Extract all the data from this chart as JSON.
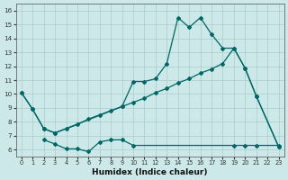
{
  "xlabel": "Humidex (Indice chaleur)",
  "bg_color": "#cce8e8",
  "grid_color": "#aacccc",
  "line_color": "#006666",
  "xlim": [
    -0.5,
    23.5
  ],
  "ylim": [
    5.5,
    16.5
  ],
  "xticks": [
    0,
    1,
    2,
    3,
    4,
    5,
    6,
    7,
    8,
    9,
    10,
    11,
    12,
    13,
    14,
    15,
    16,
    17,
    18,
    19,
    20,
    21,
    22,
    23
  ],
  "yticks": [
    6,
    7,
    8,
    9,
    10,
    11,
    12,
    13,
    14,
    15,
    16
  ],
  "line1_x": [
    0,
    1,
    2,
    3,
    4,
    5,
    6,
    7,
    8,
    9,
    10,
    11,
    12,
    13,
    14,
    15,
    16,
    17,
    18,
    19,
    20,
    21,
    23
  ],
  "line1_y": [
    10.1,
    8.9,
    7.5,
    7.2,
    7.5,
    7.8,
    8.2,
    8.5,
    8.8,
    9.1,
    10.9,
    10.9,
    11.1,
    12.2,
    15.5,
    14.8,
    15.5,
    14.3,
    13.3,
    13.3,
    11.85,
    9.85,
    6.2
  ],
  "line2_x": [
    0,
    1,
    2,
    3,
    9,
    10,
    11,
    12,
    13,
    14,
    15,
    16,
    17,
    18,
    19,
    20,
    21,
    23
  ],
  "line2_y": [
    10.1,
    8.9,
    7.5,
    7.2,
    9.1,
    9.4,
    9.7,
    10.1,
    10.4,
    10.8,
    11.1,
    11.5,
    11.8,
    12.2,
    13.3,
    11.85,
    9.85,
    6.2
  ],
  "line3_x": [
    2,
    3,
    4,
    5,
    6,
    7,
    8,
    9,
    10,
    19,
    20,
    21,
    23
  ],
  "line3_y": [
    6.7,
    6.4,
    6.05,
    6.05,
    5.85,
    6.55,
    6.7,
    6.7,
    6.3,
    6.3,
    6.3,
    6.3,
    6.3
  ]
}
